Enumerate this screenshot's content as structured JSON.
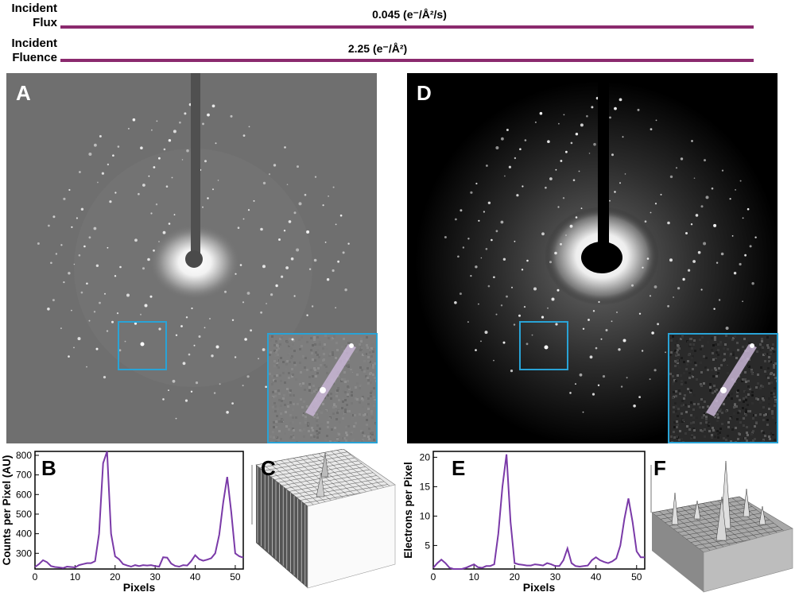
{
  "header": {
    "flux_label_line1": "Incident",
    "flux_label_line2": "Flux",
    "flux_value": "0.045 (e⁻/Å²/s)",
    "fluence_label_line1": "Incident",
    "fluence_label_line2": "Fluence",
    "fluence_value": "2.25 (e⁻/Å²)",
    "bar_color": "#8b2a6e"
  },
  "panels": {
    "A": "A",
    "B": "B",
    "C": "C",
    "D": "D",
    "E": "E",
    "F": "F"
  },
  "colors": {
    "inset_border": "#29a3d6",
    "line": "#7a3aa8"
  },
  "chart_data": [
    {
      "type": "line",
      "panel": "B",
      "xlabel": "Pixels",
      "ylabel": "Counts per Pixel (AU)",
      "xlim": [
        0,
        52
      ],
      "ylim": [
        220,
        820
      ],
      "xticks": [
        0,
        10,
        20,
        30,
        40,
        50
      ],
      "yticks": [
        300,
        400,
        500,
        600,
        700,
        800
      ],
      "x": [
        0,
        1,
        2,
        3,
        4,
        5,
        6,
        7,
        8,
        9,
        10,
        11,
        12,
        13,
        14,
        15,
        16,
        17,
        18,
        19,
        20,
        21,
        22,
        23,
        24,
        25,
        26,
        27,
        28,
        29,
        30,
        31,
        32,
        33,
        34,
        35,
        36,
        37,
        38,
        39,
        40,
        41,
        42,
        43,
        44,
        45,
        46,
        47,
        48,
        49,
        50,
        51,
        52
      ],
      "values": [
        230,
        245,
        265,
        255,
        235,
        230,
        228,
        225,
        232,
        230,
        228,
        240,
        245,
        250,
        250,
        260,
        400,
        760,
        820,
        400,
        285,
        270,
        245,
        238,
        232,
        240,
        235,
        240,
        238,
        240,
        235,
        232,
        280,
        278,
        248,
        236,
        232,
        240,
        238,
        260,
        290,
        270,
        262,
        268,
        275,
        300,
        395,
        560,
        690,
        510,
        300,
        285,
        278
      ]
    },
    {
      "type": "line",
      "panel": "E",
      "xlabel": "Pixels",
      "ylabel": "Electrons per Pixel",
      "xlim": [
        0,
        52
      ],
      "ylim": [
        1,
        21
      ],
      "xticks": [
        0,
        10,
        20,
        30,
        40,
        50
      ],
      "yticks": [
        5,
        10,
        15,
        20
      ],
      "x": [
        0,
        1,
        2,
        3,
        4,
        5,
        6,
        7,
        8,
        9,
        10,
        11,
        12,
        13,
        14,
        15,
        16,
        17,
        18,
        19,
        20,
        21,
        22,
        23,
        24,
        25,
        26,
        27,
        28,
        29,
        30,
        31,
        32,
        33,
        34,
        35,
        36,
        37,
        38,
        39,
        40,
        41,
        42,
        43,
        44,
        45,
        46,
        47,
        48,
        49,
        50,
        51,
        52
      ],
      "values": [
        1.2,
        2.0,
        2.6,
        2.0,
        1.2,
        1.0,
        1.0,
        1.0,
        1.2,
        1.5,
        1.8,
        1.3,
        1.2,
        1.5,
        1.5,
        1.8,
        7.0,
        15.0,
        20.5,
        9.0,
        2.0,
        1.8,
        1.7,
        1.6,
        1.6,
        1.8,
        1.7,
        1.6,
        2.0,
        1.8,
        1.5,
        1.5,
        2.5,
        4.5,
        2.0,
        1.5,
        1.4,
        1.5,
        1.6,
        2.5,
        3.0,
        2.5,
        2.2,
        2.0,
        2.3,
        2.8,
        5.0,
        9.5,
        13.0,
        9.0,
        4.0,
        3.0,
        3.0
      ]
    }
  ]
}
